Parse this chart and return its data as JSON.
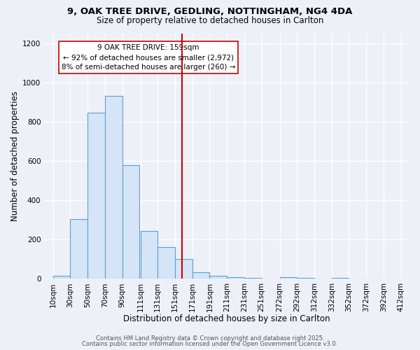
{
  "title_line1": "9, OAK TREE DRIVE, GEDLING, NOTTINGHAM, NG4 4DA",
  "title_line2": "Size of property relative to detached houses in Carlton",
  "xlabel": "Distribution of detached houses by size in Carlton",
  "ylabel": "Number of detached properties",
  "bar_left_edges": [
    10,
    30,
    50,
    70,
    90,
    111,
    131,
    151,
    171,
    191,
    211,
    231,
    251,
    272,
    292,
    312,
    332,
    352,
    372,
    392
  ],
  "bar_widths": [
    20,
    20,
    20,
    20,
    20,
    20,
    20,
    20,
    20,
    20,
    20,
    20,
    21,
    20,
    20,
    20,
    20,
    20,
    20,
    20
  ],
  "bar_heights": [
    15,
    305,
    845,
    930,
    580,
    245,
    163,
    100,
    35,
    15,
    10,
    5,
    3,
    8,
    5,
    0,
    5,
    0,
    0,
    3
  ],
  "bar_facecolor": "#d6e4f7",
  "bar_edgecolor": "#5a9fd4",
  "vline_x": 159,
  "vline_color": "#cc0000",
  "annotation_line1": "9 OAK TREE DRIVE: 159sqm",
  "annotation_line2": "← 92% of detached houses are smaller (2,972)",
  "annotation_line3": "8% of semi-detached houses are larger (260) →",
  "ylim": [
    0,
    1250
  ],
  "yticks": [
    0,
    200,
    400,
    600,
    800,
    1000,
    1200
  ],
  "xtick_labels": [
    "10sqm",
    "30sqm",
    "50sqm",
    "70sqm",
    "90sqm",
    "111sqm",
    "131sqm",
    "151sqm",
    "171sqm",
    "191sqm",
    "211sqm",
    "231sqm",
    "251sqm",
    "272sqm",
    "292sqm",
    "312sqm",
    "332sqm",
    "352sqm",
    "372sqm",
    "392sqm",
    "412sqm"
  ],
  "xtick_positions": [
    10,
    30,
    50,
    70,
    90,
    111,
    131,
    151,
    171,
    191,
    211,
    231,
    251,
    272,
    292,
    312,
    332,
    352,
    372,
    392,
    412
  ],
  "bg_color": "#edf1f7",
  "plot_bg_color": "#edf1f7",
  "grid_color": "#ffffff",
  "footer_line1": "Contains HM Land Registry data © Crown copyright and database right 2025.",
  "footer_line2": "Contains public sector information licensed under the Open Government Licence v3.0."
}
